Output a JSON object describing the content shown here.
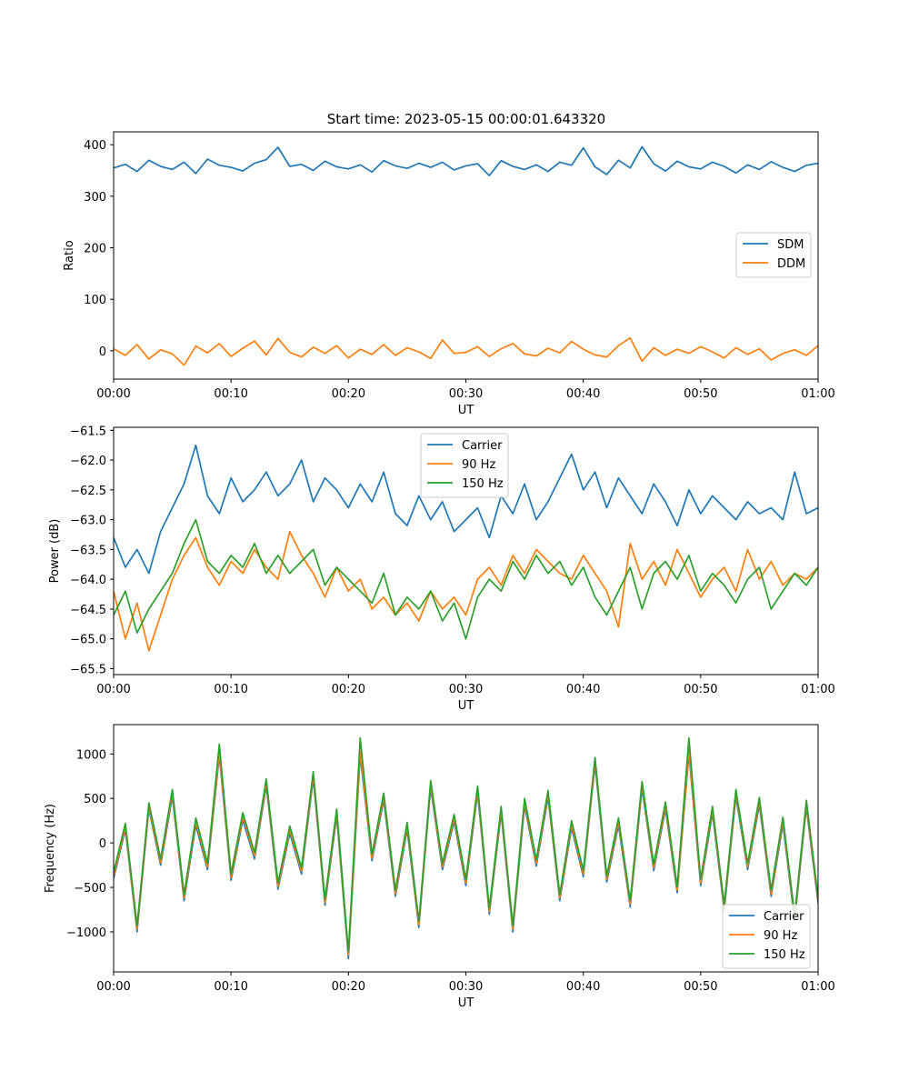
{
  "figure": {
    "title": "Start time: 2023-05-15 00:00:01.643320"
  },
  "chart_data": [
    {
      "type": "line",
      "xlabel": "UT",
      "ylabel": "Ratio",
      "xlim": [
        0,
        60
      ],
      "ylim": [
        -55,
        425
      ],
      "xticks": [
        0,
        10,
        20,
        30,
        40,
        50,
        60
      ],
      "xtick_labels": [
        "00:00",
        "00:10",
        "00:20",
        "00:30",
        "00:40",
        "00:50",
        "01:00"
      ],
      "yticks": [
        0,
        100,
        200,
        300,
        400
      ],
      "ytick_labels": [
        "0",
        "100",
        "200",
        "300",
        "400"
      ],
      "legend_position": "center-right",
      "grid": false,
      "series": [
        {
          "name": "SDM",
          "color": "#1f77b4",
          "x": [
            0,
            1,
            2,
            3,
            4,
            5,
            6,
            7,
            8,
            9,
            10,
            11,
            12,
            13,
            14,
            15,
            16,
            17,
            18,
            19,
            20,
            21,
            22,
            23,
            24,
            25,
            26,
            27,
            28,
            29,
            30,
            31,
            32,
            33,
            34,
            35,
            36,
            37,
            38,
            39,
            40,
            41,
            42,
            43,
            44,
            45,
            46,
            47,
            48,
            49,
            50,
            51,
            52,
            53,
            54,
            55,
            56,
            57,
            58,
            59,
            60
          ],
          "values": [
            355,
            362,
            348,
            370,
            358,
            352,
            366,
            344,
            372,
            360,
            356,
            349,
            364,
            371,
            395,
            358,
            362,
            350,
            368,
            357,
            353,
            361,
            347,
            369,
            359,
            354,
            364,
            356,
            366,
            351,
            359,
            363,
            340,
            369,
            358,
            352,
            361,
            348,
            366,
            360,
            394,
            357,
            342,
            370,
            355,
            396,
            363,
            349,
            368,
            357,
            353,
            366,
            358,
            345,
            361,
            352,
            367,
            356,
            348,
            360,
            364
          ]
        },
        {
          "name": "DDM",
          "color": "#ff7f0e",
          "x": [
            0,
            1,
            2,
            3,
            4,
            5,
            6,
            7,
            8,
            9,
            10,
            11,
            12,
            13,
            14,
            15,
            16,
            17,
            18,
            19,
            20,
            21,
            22,
            23,
            24,
            25,
            26,
            27,
            28,
            29,
            30,
            31,
            32,
            33,
            34,
            35,
            36,
            37,
            38,
            39,
            40,
            41,
            42,
            43,
            44,
            45,
            46,
            47,
            48,
            49,
            50,
            51,
            52,
            53,
            54,
            55,
            56,
            57,
            58,
            59,
            60
          ],
          "values": [
            4,
            -9,
            12,
            -16,
            2,
            -6,
            -28,
            9,
            -4,
            14,
            -11,
            5,
            19,
            -8,
            24,
            -3,
            -12,
            7,
            -5,
            10,
            -14,
            3,
            -7,
            12,
            -9,
            6,
            -2,
            -15,
            21,
            -5,
            -3,
            8,
            -11,
            4,
            14,
            -6,
            -10,
            5,
            -4,
            18,
            3,
            -8,
            -12,
            10,
            25,
            -20,
            6,
            -9,
            3,
            -5,
            8,
            -2,
            -14,
            6,
            -7,
            4,
            -18,
            -5,
            2,
            -9,
            10
          ]
        }
      ]
    },
    {
      "type": "line",
      "xlabel": "UT",
      "ylabel": "Power (dB)",
      "xlim": [
        0,
        60
      ],
      "ylim": [
        -65.6,
        -61.45
      ],
      "xticks": [
        0,
        10,
        20,
        30,
        40,
        50,
        60
      ],
      "xtick_labels": [
        "00:00",
        "00:10",
        "00:20",
        "00:30",
        "00:40",
        "00:50",
        "01:00"
      ],
      "yticks": [
        -65.5,
        -65.0,
        -64.5,
        -64.0,
        -63.5,
        -63.0,
        -62.5,
        -62.0,
        -61.5
      ],
      "ytick_labels": [
        "−65.5",
        "−65.0",
        "−64.5",
        "−64.0",
        "−63.5",
        "−63.0",
        "−62.5",
        "−62.0",
        "−61.5"
      ],
      "legend_position": "upper-center",
      "grid": false,
      "series": [
        {
          "name": "Carrier",
          "color": "#1f77b4",
          "x": [
            0,
            1,
            2,
            3,
            4,
            5,
            6,
            7,
            8,
            9,
            10,
            11,
            12,
            13,
            14,
            15,
            16,
            17,
            18,
            19,
            20,
            21,
            22,
            23,
            24,
            25,
            26,
            27,
            28,
            29,
            30,
            31,
            32,
            33,
            34,
            35,
            36,
            37,
            38,
            39,
            40,
            41,
            42,
            43,
            44,
            45,
            46,
            47,
            48,
            49,
            50,
            51,
            52,
            53,
            54,
            55,
            56,
            57,
            58,
            59,
            60
          ],
          "values": [
            -63.3,
            -63.8,
            -63.5,
            -63.9,
            -63.2,
            -62.8,
            -62.4,
            -61.75,
            -62.6,
            -62.9,
            -62.3,
            -62.7,
            -62.5,
            -62.2,
            -62.6,
            -62.4,
            -62.0,
            -62.7,
            -62.3,
            -62.5,
            -62.8,
            -62.4,
            -62.7,
            -62.2,
            -62.9,
            -63.1,
            -62.6,
            -63.0,
            -62.7,
            -63.2,
            -63.0,
            -62.8,
            -63.3,
            -62.6,
            -62.9,
            -62.4,
            -63.0,
            -62.7,
            -62.3,
            -61.9,
            -62.5,
            -62.2,
            -62.8,
            -62.3,
            -62.6,
            -62.9,
            -62.4,
            -62.7,
            -63.1,
            -62.5,
            -62.9,
            -62.6,
            -62.8,
            -63.0,
            -62.7,
            -62.9,
            -62.8,
            -63.0,
            -62.2,
            -62.9,
            -62.8
          ]
        },
        {
          "name": "90 Hz",
          "color": "#ff7f0e",
          "x": [
            0,
            1,
            2,
            3,
            4,
            5,
            6,
            7,
            8,
            9,
            10,
            11,
            12,
            13,
            14,
            15,
            16,
            17,
            18,
            19,
            20,
            21,
            22,
            23,
            24,
            25,
            26,
            27,
            28,
            29,
            30,
            31,
            32,
            33,
            34,
            35,
            36,
            37,
            38,
            39,
            40,
            41,
            42,
            43,
            44,
            45,
            46,
            47,
            48,
            49,
            50,
            51,
            52,
            53,
            54,
            55,
            56,
            57,
            58,
            59,
            60
          ],
          "values": [
            -64.2,
            -65.0,
            -64.4,
            -65.2,
            -64.6,
            -64.0,
            -63.6,
            -63.3,
            -63.8,
            -64.1,
            -63.7,
            -63.9,
            -63.5,
            -63.8,
            -64.0,
            -63.2,
            -63.6,
            -63.9,
            -64.3,
            -63.8,
            -64.2,
            -64.0,
            -64.5,
            -64.3,
            -64.6,
            -64.4,
            -64.7,
            -64.2,
            -64.5,
            -64.3,
            -64.6,
            -64.0,
            -63.8,
            -64.1,
            -63.6,
            -63.9,
            -63.5,
            -63.7,
            -63.9,
            -64.0,
            -63.6,
            -63.9,
            -64.2,
            -64.8,
            -63.4,
            -64.0,
            -63.7,
            -64.1,
            -63.5,
            -63.9,
            -64.3,
            -64.0,
            -63.8,
            -64.2,
            -63.5,
            -64.0,
            -63.7,
            -64.1,
            -63.9,
            -64.0,
            -63.8
          ]
        },
        {
          "name": "150 Hz",
          "color": "#2ca02c",
          "x": [
            0,
            1,
            2,
            3,
            4,
            5,
            6,
            7,
            8,
            9,
            10,
            11,
            12,
            13,
            14,
            15,
            16,
            17,
            18,
            19,
            20,
            21,
            22,
            23,
            24,
            25,
            26,
            27,
            28,
            29,
            30,
            31,
            32,
            33,
            34,
            35,
            36,
            37,
            38,
            39,
            40,
            41,
            42,
            43,
            44,
            45,
            46,
            47,
            48,
            49,
            50,
            51,
            52,
            53,
            54,
            55,
            56,
            57,
            58,
            59,
            60
          ],
          "values": [
            -64.6,
            -64.2,
            -64.9,
            -64.5,
            -64.2,
            -63.9,
            -63.4,
            -63.0,
            -63.7,
            -63.9,
            -63.6,
            -63.8,
            -63.4,
            -63.9,
            -63.6,
            -63.9,
            -63.7,
            -63.5,
            -64.1,
            -63.8,
            -64.0,
            -64.2,
            -64.4,
            -63.9,
            -64.6,
            -64.3,
            -64.5,
            -64.2,
            -64.7,
            -64.4,
            -65.0,
            -64.3,
            -64.0,
            -64.2,
            -63.7,
            -64.0,
            -63.6,
            -63.9,
            -63.7,
            -64.1,
            -63.8,
            -64.3,
            -64.6,
            -64.2,
            -63.8,
            -64.5,
            -63.9,
            -63.7,
            -64.0,
            -63.6,
            -64.2,
            -63.9,
            -64.1,
            -64.4,
            -64.0,
            -63.8,
            -64.5,
            -64.2,
            -63.9,
            -64.1,
            -63.8
          ]
        }
      ]
    },
    {
      "type": "line",
      "xlabel": "UT",
      "ylabel": "Frequency (Hz)",
      "xlim": [
        0,
        60
      ],
      "ylim": [
        -1450,
        1330
      ],
      "xticks": [
        0,
        10,
        20,
        30,
        40,
        50,
        60
      ],
      "xtick_labels": [
        "00:00",
        "00:10",
        "00:20",
        "00:30",
        "00:40",
        "00:50",
        "01:00"
      ],
      "yticks": [
        -1000,
        -500,
        0,
        500,
        1000
      ],
      "ytick_labels": [
        "−1000",
        "−500",
        "0",
        "500",
        "1000"
      ],
      "legend_position": "lower-right",
      "grid": false,
      "series": [
        {
          "name": "Carrier",
          "color": "#1f77b4",
          "x": [
            0,
            1,
            2,
            3,
            4,
            5,
            6,
            7,
            8,
            9,
            10,
            11,
            12,
            13,
            14,
            15,
            16,
            17,
            18,
            19,
            20,
            21,
            22,
            23,
            24,
            25,
            26,
            27,
            28,
            29,
            30,
            31,
            32,
            33,
            34,
            35,
            36,
            37,
            38,
            39,
            40,
            41,
            42,
            43,
            44,
            45,
            46,
            47,
            48,
            49,
            50,
            51,
            52,
            53,
            54,
            55,
            56,
            57,
            58,
            59,
            60
          ],
          "values": [
            -400,
            150,
            -1000,
            380,
            -250,
            520,
            -650,
            200,
            -300,
            980,
            -420,
            260,
            -180,
            640,
            -520,
            110,
            -350,
            720,
            -700,
            300,
            -1300,
            980,
            -200,
            480,
            -600,
            150,
            -950,
            620,
            -300,
            240,
            -480,
            560,
            -800,
            330,
            -1000,
            420,
            -260,
            510,
            -650,
            170,
            -380,
            880,
            -440,
            200,
            -720,
            610,
            -310,
            380,
            -560,
            1000,
            -480,
            330,
            -760,
            520,
            -300,
            430,
            -600,
            210,
            -880,
            400,
            -680
          ]
        },
        {
          "name": "90 Hz",
          "color": "#ff7f0e",
          "x": [
            0,
            1,
            2,
            3,
            4,
            5,
            6,
            7,
            8,
            9,
            10,
            11,
            12,
            13,
            14,
            15,
            16,
            17,
            18,
            19,
            20,
            21,
            22,
            23,
            24,
            25,
            26,
            27,
            28,
            29,
            30,
            31,
            32,
            33,
            34,
            35,
            36,
            37,
            38,
            39,
            40,
            41,
            42,
            43,
            44,
            45,
            46,
            47,
            48,
            49,
            50,
            51,
            52,
            53,
            54,
            55,
            56,
            57,
            58,
            59,
            60
          ],
          "values": [
            -370,
            180,
            -970,
            410,
            -220,
            560,
            -620,
            240,
            -270,
            1020,
            -390,
            300,
            -150,
            680,
            -490,
            150,
            -320,
            760,
            -670,
            340,
            -1260,
            1030,
            -170,
            520,
            -570,
            190,
            -920,
            660,
            -270,
            280,
            -450,
            600,
            -770,
            370,
            -970,
            460,
            -230,
            550,
            -620,
            210,
            -350,
            920,
            -410,
            240,
            -690,
            650,
            -280,
            420,
            -530,
            1050,
            -450,
            370,
            -730,
            560,
            -270,
            470,
            -570,
            250,
            -850,
            440,
            -650
          ]
        },
        {
          "name": "150 Hz",
          "color": "#2ca02c",
          "x": [
            0,
            1,
            2,
            3,
            4,
            5,
            6,
            7,
            8,
            9,
            10,
            11,
            12,
            13,
            14,
            15,
            16,
            17,
            18,
            19,
            20,
            21,
            22,
            23,
            24,
            25,
            26,
            27,
            28,
            29,
            30,
            31,
            32,
            33,
            34,
            35,
            36,
            37,
            38,
            39,
            40,
            41,
            42,
            43,
            44,
            45,
            46,
            47,
            48,
            49,
            50,
            51,
            52,
            53,
            54,
            55,
            56,
            57,
            58,
            59,
            60
          ],
          "values": [
            -330,
            220,
            -930,
            450,
            -180,
            600,
            -580,
            280,
            -230,
            1110,
            -350,
            340,
            -110,
            720,
            -450,
            190,
            -280,
            800,
            -630,
            380,
            -1220,
            1180,
            -130,
            560,
            -530,
            230,
            -880,
            700,
            -230,
            320,
            -410,
            640,
            -730,
            410,
            -930,
            500,
            -190,
            590,
            -580,
            250,
            -310,
            960,
            -370,
            280,
            -650,
            690,
            -240,
            460,
            -490,
            1180,
            -410,
            410,
            -690,
            600,
            -230,
            510,
            -530,
            290,
            -810,
            480,
            -610
          ]
        }
      ]
    }
  ]
}
